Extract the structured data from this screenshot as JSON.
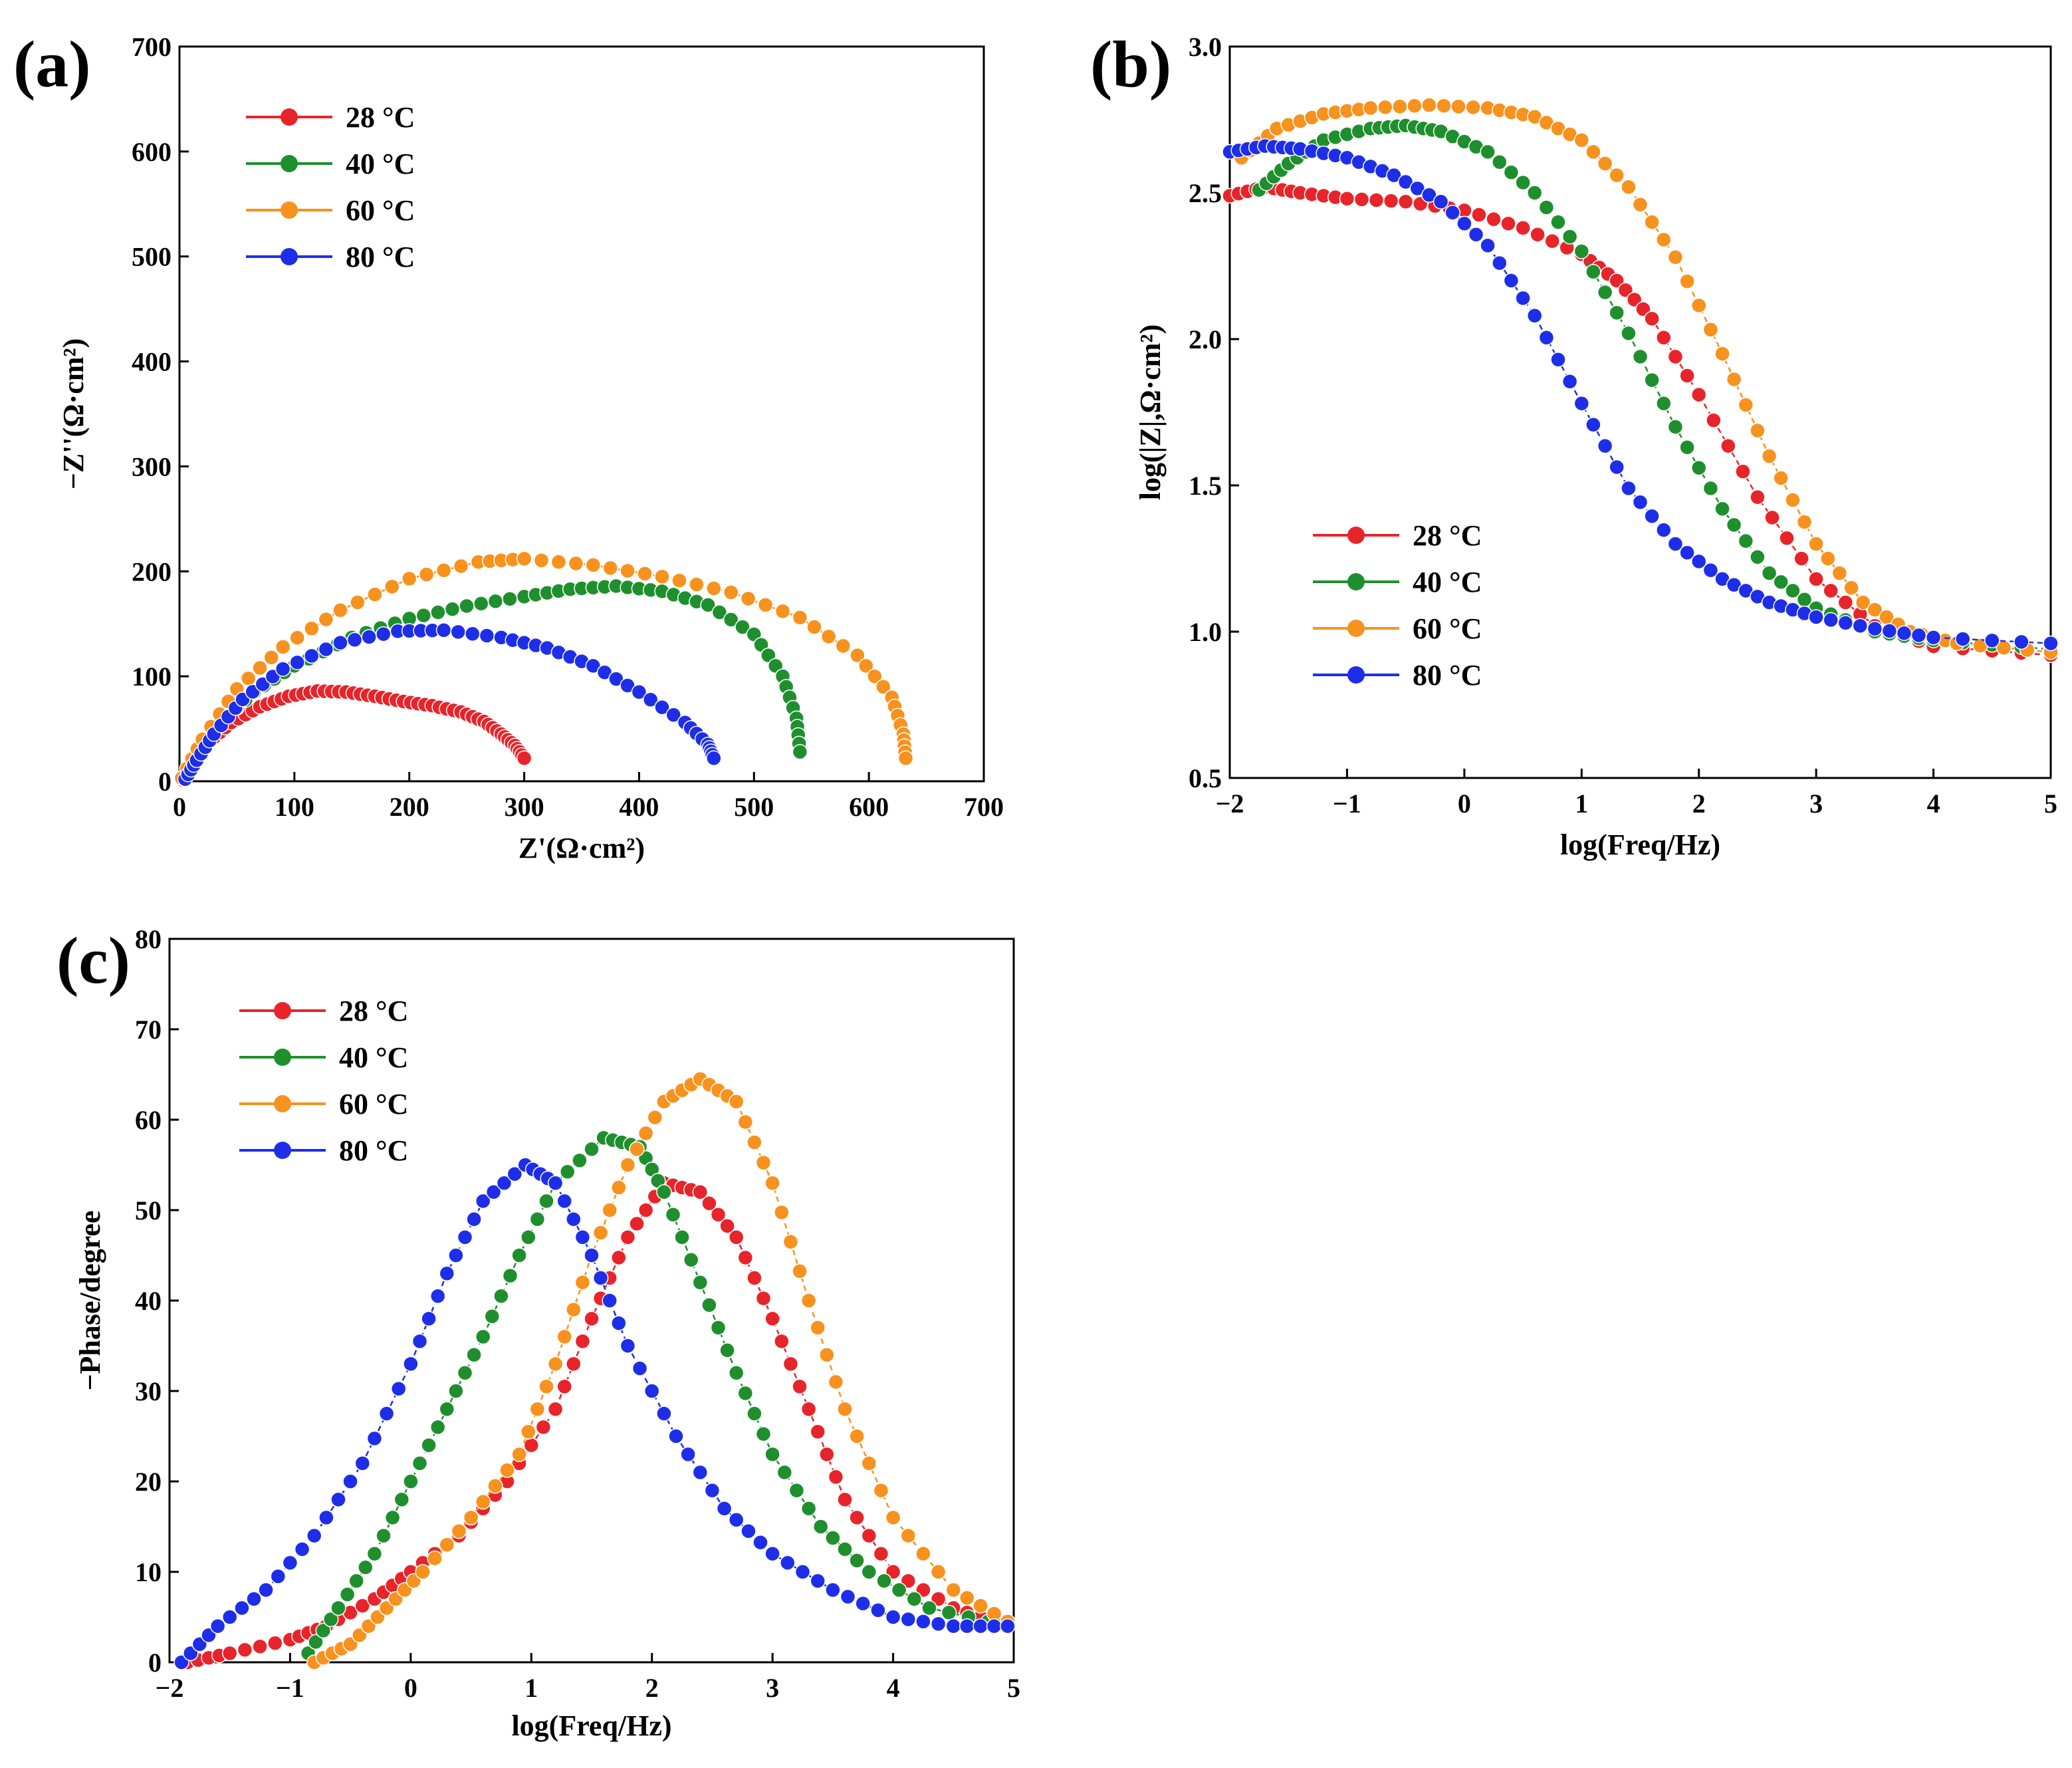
{
  "chart_data": [
    {
      "id": "a",
      "type": "scatter",
      "panel_label": "(a)",
      "xlabel": "Z'(Ω·cm²)",
      "ylabel": "−Z''(Ω·cm²)",
      "xlim": [
        0,
        700
      ],
      "ylim": [
        0,
        700
      ],
      "xticks": [
        "0",
        "100",
        "200",
        "300",
        "400",
        "500",
        "600",
        "700"
      ],
      "yticks": [
        "0",
        "100",
        "200",
        "300",
        "400",
        "500",
        "600",
        "700"
      ],
      "legend": "top-left",
      "series": [
        {
          "name": "28 °C",
          "color": "#e8242b",
          "points": [
            [
              3,
              1
            ],
            [
              10,
              18
            ],
            [
              25,
              37
            ],
            [
              45,
              56
            ],
            [
              70,
              71
            ],
            [
              95,
              81
            ],
            [
              120,
              86
            ],
            [
              145,
              85
            ],
            [
              170,
              81
            ],
            [
              195,
              76
            ],
            [
              220,
              72
            ],
            [
              245,
              66
            ],
            [
              265,
              57
            ],
            [
              280,
              45
            ],
            [
              292,
              34
            ],
            [
              300,
              22
            ]
          ]
        },
        {
          "name": "40 °C",
          "color": "#1f8f2e",
          "points": [
            [
              4,
              2
            ],
            [
              15,
              25
            ],
            [
              35,
              55
            ],
            [
              65,
              85
            ],
            [
              100,
              110
            ],
            [
              150,
              137
            ],
            [
              200,
              155
            ],
            [
              250,
              167
            ],
            [
              300,
              176
            ],
            [
              340,
              183
            ],
            [
              380,
              186
            ],
            [
              420,
              181
            ],
            [
              460,
              168
            ],
            [
              500,
              140
            ],
            [
              525,
              100
            ],
            [
              537,
              60
            ],
            [
              540,
              28
            ]
          ]
        },
        {
          "name": "60 °C",
          "color": "#f7921e",
          "points": [
            [
              2,
              3
            ],
            [
              20,
              40
            ],
            [
              50,
              88
            ],
            [
              90,
              128
            ],
            [
              140,
              163
            ],
            [
              200,
              193
            ],
            [
              260,
              209
            ],
            [
              300,
              212
            ],
            [
              360,
              206
            ],
            [
              420,
              195
            ],
            [
              480,
              180
            ],
            [
              540,
              156
            ],
            [
              590,
              120
            ],
            [
              620,
              80
            ],
            [
              630,
              45
            ],
            [
              632,
              22
            ]
          ]
        },
        {
          "name": "80 °C",
          "color": "#1e2ee8",
          "points": [
            [
              5,
              2
            ],
            [
              15,
              20
            ],
            [
              30,
              45
            ],
            [
              55,
              78
            ],
            [
              90,
              107
            ],
            [
              140,
              132
            ],
            [
              190,
              143
            ],
            [
              230,
              144
            ],
            [
              280,
              137
            ],
            [
              320,
              127
            ],
            [
              360,
              110
            ],
            [
              400,
              85
            ],
            [
              440,
              56
            ],
            [
              460,
              35
            ],
            [
              465,
              22
            ]
          ]
        }
      ]
    },
    {
      "id": "b",
      "type": "scatter",
      "panel_label": "(b)",
      "xlabel": "log(Freq/Hz)",
      "ylabel": "log(|Z|,Ω·cm²)",
      "xlim": [
        -2,
        5
      ],
      "ylim": [
        0.5,
        3.0
      ],
      "xticks": [
        "−2",
        "−1",
        "0",
        "1",
        "2",
        "3",
        "4",
        "5"
      ],
      "yticks": [
        "0.5",
        "1.0",
        "1.5",
        "2.0",
        "2.5",
        "3.0"
      ],
      "legend": "lower-left",
      "series": [
        {
          "name": "28 °C",
          "color": "#e8242b",
          "points": [
            [
              -2,
              2.49
            ],
            [
              -1.7,
              2.52
            ],
            [
              -1.4,
              2.5
            ],
            [
              -1,
              2.48
            ],
            [
              -0.5,
              2.47
            ],
            [
              0,
              2.44
            ],
            [
              0.5,
              2.38
            ],
            [
              1,
              2.29
            ],
            [
              1.3,
              2.2
            ],
            [
              1.6,
              2.07
            ],
            [
              2,
              1.81
            ],
            [
              2.5,
              1.46
            ],
            [
              3,
              1.18
            ],
            [
              3.5,
              1.02
            ],
            [
              4,
              0.95
            ],
            [
              5,
              0.92
            ]
          ]
        },
        {
          "name": "40 °C",
          "color": "#1f8f2e",
          "points": [
            [
              -1.75,
              2.51
            ],
            [
              -1.5,
              2.6
            ],
            [
              -1.2,
              2.68
            ],
            [
              -0.8,
              2.72
            ],
            [
              -0.5,
              2.73
            ],
            [
              -0.2,
              2.71
            ],
            [
              0.2,
              2.64
            ],
            [
              0.6,
              2.5
            ],
            [
              1,
              2.3
            ],
            [
              1.4,
              2.02
            ],
            [
              1.8,
              1.7
            ],
            [
              2.2,
              1.42
            ],
            [
              2.6,
              1.2
            ],
            [
              3,
              1.08
            ],
            [
              3.5,
              1.0
            ],
            [
              4,
              0.97
            ],
            [
              5,
              0.94
            ]
          ]
        },
        {
          "name": "60 °C",
          "color": "#f7921e",
          "points": [
            [
              -1.9,
              2.62
            ],
            [
              -1.6,
              2.72
            ],
            [
              -1.2,
              2.77
            ],
            [
              -0.8,
              2.79
            ],
            [
              -0.3,
              2.8
            ],
            [
              0.2,
              2.79
            ],
            [
              0.6,
              2.76
            ],
            [
              1,
              2.68
            ],
            [
              1.4,
              2.52
            ],
            [
              1.8,
              2.28
            ],
            [
              2.2,
              1.95
            ],
            [
              2.6,
              1.6
            ],
            [
              3,
              1.3
            ],
            [
              3.4,
              1.1
            ],
            [
              3.8,
              1.0
            ],
            [
              4.2,
              0.96
            ],
            [
              5,
              0.93
            ]
          ]
        },
        {
          "name": "80 °C",
          "color": "#1e2ee8",
          "points": [
            [
              -2,
              2.64
            ],
            [
              -1.7,
              2.66
            ],
            [
              -1.4,
              2.65
            ],
            [
              -1,
              2.62
            ],
            [
              -0.6,
              2.56
            ],
            [
              -0.2,
              2.47
            ],
            [
              0.2,
              2.32
            ],
            [
              0.6,
              2.08
            ],
            [
              1,
              1.78
            ],
            [
              1.4,
              1.49
            ],
            [
              1.8,
              1.3
            ],
            [
              2.2,
              1.18
            ],
            [
              2.6,
              1.1
            ],
            [
              3,
              1.05
            ],
            [
              3.5,
              1.01
            ],
            [
              4,
              0.98
            ],
            [
              5,
              0.96
            ]
          ]
        }
      ]
    },
    {
      "id": "c",
      "type": "scatter",
      "panel_label": "(c)",
      "xlabel": "log(Freq/Hz)",
      "ylabel": "−Phase/degree",
      "xlim": [
        -2,
        5
      ],
      "ylim": [
        0,
        80
      ],
      "xticks": [
        "−2",
        "−1",
        "0",
        "1",
        "2",
        "3",
        "4",
        "5"
      ],
      "yticks": [
        "0",
        "10",
        "20",
        "30",
        "40",
        "50",
        "60",
        "70",
        "80"
      ],
      "legend": "top-left",
      "series": [
        {
          "name": "28 °C",
          "color": "#e8242b",
          "points": [
            [
              -1.85,
              0
            ],
            [
              -1.5,
              1
            ],
            [
              -1,
              2.5
            ],
            [
              -0.7,
              4
            ],
            [
              -0.3,
              7
            ],
            [
              0,
              10
            ],
            [
              0.4,
              14
            ],
            [
              0.8,
              20
            ],
            [
              1.2,
              28
            ],
            [
              1.5,
              38
            ],
            [
              1.8,
              47
            ],
            [
              2.1,
              53
            ],
            [
              2.4,
              52
            ],
            [
              2.7,
              47
            ],
            [
              3,
              38
            ],
            [
              3.3,
              28
            ],
            [
              3.6,
              18
            ],
            [
              4,
              10
            ],
            [
              4.5,
              6
            ],
            [
              4.95,
              4
            ]
          ]
        },
        {
          "name": "40 °C",
          "color": "#1f8f2e",
          "points": [
            [
              -0.85,
              1
            ],
            [
              -0.6,
              6
            ],
            [
              -0.3,
              12
            ],
            [
              0,
              20
            ],
            [
              0.3,
              28
            ],
            [
              0.6,
              36
            ],
            [
              0.9,
              45
            ],
            [
              1.2,
              53
            ],
            [
              1.6,
              58
            ],
            [
              1.9,
              57
            ],
            [
              2.1,
              52
            ],
            [
              2.4,
              42
            ],
            [
              2.7,
              32
            ],
            [
              3,
              23
            ],
            [
              3.4,
              15
            ],
            [
              3.8,
              10
            ],
            [
              4.3,
              6
            ],
            [
              4.95,
              4
            ]
          ]
        },
        {
          "name": "60 °C",
          "color": "#f7921e",
          "points": [
            [
              -0.8,
              0
            ],
            [
              -0.5,
              2
            ],
            [
              -0.2,
              6
            ],
            [
              0.1,
              10
            ],
            [
              0.5,
              16
            ],
            [
              0.9,
              23
            ],
            [
              1.2,
              33
            ],
            [
              1.5,
              45
            ],
            [
              1.8,
              55
            ],
            [
              2.1,
              62
            ],
            [
              2.4,
              64.5
            ],
            [
              2.7,
              62
            ],
            [
              3,
              53
            ],
            [
              3.3,
              40
            ],
            [
              3.6,
              28
            ],
            [
              4,
              16
            ],
            [
              4.5,
              8
            ],
            [
              4.95,
              4.5
            ]
          ]
        },
        {
          "name": "80 °C",
          "color": "#1e2ee8",
          "points": [
            [
              -1.9,
              0
            ],
            [
              -1.6,
              4
            ],
            [
              -1.2,
              8
            ],
            [
              -0.8,
              14
            ],
            [
              -0.4,
              22
            ],
            [
              0,
              33
            ],
            [
              0.3,
              43
            ],
            [
              0.6,
              51
            ],
            [
              0.95,
              55
            ],
            [
              1.2,
              53
            ],
            [
              1.5,
              45
            ],
            [
              1.8,
              35
            ],
            [
              2.2,
              25
            ],
            [
              2.6,
              17
            ],
            [
              3,
              12
            ],
            [
              3.5,
              8
            ],
            [
              4,
              5
            ],
            [
              4.5,
              4
            ],
            [
              4.95,
              4
            ]
          ]
        }
      ]
    }
  ]
}
